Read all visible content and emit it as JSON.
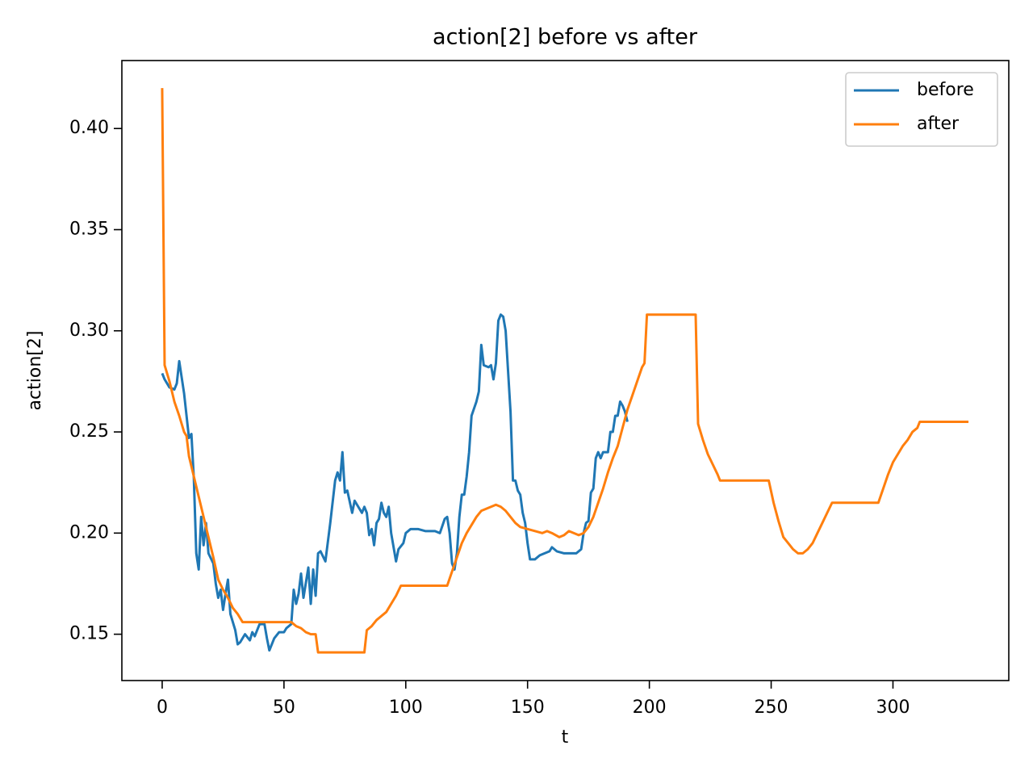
{
  "chart_data": {
    "type": "line",
    "title": "action[2] before vs after",
    "xlabel": "t",
    "ylabel": "action[2]",
    "xlim": [
      -16.55,
      347.55
    ],
    "ylim": [
      0.1271,
      0.4336
    ],
    "xticks": [
      0,
      50,
      100,
      150,
      200,
      250,
      300
    ],
    "yticks": [
      0.15,
      {
        "value": 0.2,
        "label": "0.20"
      },
      0.25,
      {
        "value": 0.3,
        "label": "0.30"
      },
      0.35,
      {
        "value": 0.4,
        "label": "0.40"
      }
    ],
    "legend": "upper right",
    "series": [
      {
        "name": "before",
        "color": "#1f77b4",
        "x": [
          0,
          1,
          3,
          5,
          6,
          7,
          9,
          11,
          12,
          13,
          14,
          15,
          16,
          17,
          18,
          19,
          21,
          22,
          23,
          24,
          25,
          26,
          27,
          28,
          30,
          31,
          32,
          34,
          36,
          37,
          38,
          40,
          42,
          43,
          44,
          46,
          48,
          50,
          51,
          53,
          54,
          55,
          56,
          57,
          58,
          60,
          61,
          62,
          63,
          64,
          65,
          67,
          69,
          71,
          72,
          73,
          74,
          75,
          76,
          78,
          79,
          80,
          82,
          83,
          84,
          85,
          86,
          87,
          88,
          89,
          90,
          91,
          92,
          93,
          94,
          96,
          97,
          99,
          100,
          102,
          105,
          108,
          112,
          114,
          116,
          117,
          118,
          119,
          120,
          121,
          122,
          123,
          124,
          125,
          126,
          127,
          129,
          130,
          131,
          132,
          134,
          135,
          136,
          137,
          138,
          139,
          140,
          141,
          142,
          143,
          144,
          145,
          146,
          147,
          148,
          149,
          150,
          151,
          153,
          155,
          157,
          159,
          160,
          162,
          165,
          170,
          172,
          173,
          174,
          175,
          176,
          177,
          178,
          179,
          180,
          181,
          183,
          184,
          185,
          186,
          187,
          188,
          189,
          190,
          191
        ],
        "values": [
          0.279,
          0.276,
          0.272,
          0.271,
          0.274,
          0.285,
          0.269,
          0.247,
          0.249,
          0.227,
          0.19,
          0.182,
          0.208,
          0.194,
          0.205,
          0.19,
          0.185,
          0.175,
          0.168,
          0.172,
          0.162,
          0.17,
          0.177,
          0.16,
          0.152,
          0.145,
          0.146,
          0.15,
          0.147,
          0.151,
          0.149,
          0.155,
          0.155,
          0.148,
          0.142,
          0.148,
          0.151,
          0.151,
          0.153,
          0.155,
          0.172,
          0.165,
          0.17,
          0.18,
          0.168,
          0.183,
          0.165,
          0.182,
          0.169,
          0.19,
          0.191,
          0.186,
          0.205,
          0.226,
          0.23,
          0.226,
          0.24,
          0.22,
          0.221,
          0.21,
          0.216,
          0.214,
          0.21,
          0.213,
          0.21,
          0.199,
          0.202,
          0.194,
          0.205,
          0.207,
          0.215,
          0.21,
          0.208,
          0.213,
          0.2,
          0.186,
          0.192,
          0.195,
          0.2,
          0.202,
          0.202,
          0.201,
          0.201,
          0.2,
          0.207,
          0.208,
          0.2,
          0.185,
          0.182,
          0.19,
          0.208,
          0.219,
          0.219,
          0.228,
          0.24,
          0.258,
          0.265,
          0.27,
          0.293,
          0.283,
          0.282,
          0.283,
          0.276,
          0.284,
          0.305,
          0.308,
          0.307,
          0.3,
          0.28,
          0.26,
          0.226,
          0.226,
          0.221,
          0.219,
          0.21,
          0.205,
          0.195,
          0.187,
          0.187,
          0.189,
          0.19,
          0.191,
          0.193,
          0.191,
          0.19,
          0.19,
          0.192,
          0.2,
          0.205,
          0.206,
          0.22,
          0.222,
          0.237,
          0.24,
          0.237,
          0.24,
          0.24,
          0.25,
          0.25,
          0.258,
          0.258,
          0.265,
          0.263,
          0.26,
          0.255
        ]
      },
      {
        "name": "after",
        "color": "#ff7f0e",
        "x": [
          0,
          1,
          3,
          5,
          7,
          9,
          10,
          11,
          13,
          15,
          17,
          19,
          21,
          23,
          25,
          27,
          29,
          31,
          33,
          53,
          55,
          57,
          59,
          61,
          63,
          64,
          83,
          84,
          86,
          88,
          90,
          92,
          94,
          96,
          98,
          117,
          119,
          121,
          123,
          125,
          127,
          129,
          131,
          133,
          135,
          137,
          139,
          141,
          143,
          145,
          147,
          150,
          153,
          156,
          158,
          160,
          163,
          165,
          167,
          169,
          171,
          173,
          175,
          177,
          179,
          181,
          183,
          185,
          187,
          189,
          191,
          193,
          195,
          197,
          198,
          199,
          219,
          220,
          222,
          224,
          226,
          228,
          229,
          249,
          251,
          253,
          255,
          257,
          259,
          261,
          263,
          265,
          267,
          269,
          271,
          273,
          275,
          294,
          296,
          298,
          300,
          302,
          304,
          306,
          308,
          309,
          310,
          311,
          331
        ],
        "values": [
          0.42,
          0.283,
          0.275,
          0.265,
          0.258,
          0.25,
          0.248,
          0.238,
          0.228,
          0.218,
          0.208,
          0.198,
          0.188,
          0.177,
          0.172,
          0.168,
          0.163,
          0.16,
          0.156,
          0.156,
          0.154,
          0.153,
          0.151,
          0.15,
          0.15,
          0.141,
          0.141,
          0.152,
          0.154,
          0.157,
          0.159,
          0.161,
          0.165,
          0.169,
          0.174,
          0.174,
          0.181,
          0.188,
          0.195,
          0.2,
          0.204,
          0.208,
          0.211,
          0.212,
          0.213,
          0.214,
          0.213,
          0.211,
          0.208,
          0.205,
          0.203,
          0.202,
          0.201,
          0.2,
          0.201,
          0.2,
          0.198,
          0.199,
          0.201,
          0.2,
          0.199,
          0.2,
          0.203,
          0.208,
          0.215,
          0.222,
          0.23,
          0.237,
          0.243,
          0.252,
          0.261,
          0.268,
          0.275,
          0.282,
          0.284,
          0.308,
          0.308,
          0.254,
          0.246,
          0.239,
          0.234,
          0.229,
          0.226,
          0.226,
          0.215,
          0.206,
          0.198,
          0.195,
          0.192,
          0.19,
          0.19,
          0.192,
          0.195,
          0.2,
          0.205,
          0.21,
          0.215,
          0.215,
          0.222,
          0.229,
          0.235,
          0.239,
          0.243,
          0.246,
          0.25,
          0.251,
          0.252,
          0.255,
          0.255
        ]
      }
    ]
  }
}
